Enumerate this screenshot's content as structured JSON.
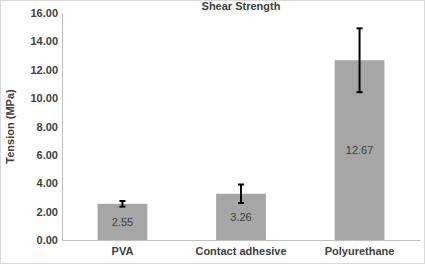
{
  "chart_data": {
    "type": "bar",
    "title": "Shear Strength",
    "y_label": "Tension (MPa)",
    "categories": [
      "PVA",
      "Contact adhesive",
      "Polyurethane"
    ],
    "values": [
      2.55,
      3.26,
      12.67
    ],
    "errors": [
      0.2,
      0.65,
      2.25
    ],
    "color": "#a6a6a6",
    "ylim": [
      0,
      16
    ],
    "yticks": [
      {
        "value": 0,
        "label": "0.00"
      },
      {
        "value": 2,
        "label": "2.00"
      },
      {
        "value": 4,
        "label": "4.00"
      },
      {
        "value": 6,
        "label": "6.00"
      },
      {
        "value": 8,
        "label": "8.00"
      },
      {
        "value": 10,
        "label": "10.00"
      },
      {
        "value": 12,
        "label": "12.00"
      },
      {
        "value": 14,
        "label": "14.00"
      },
      {
        "value": 16,
        "label": "16.00"
      }
    ],
    "grid": false,
    "data_labels": true
  }
}
